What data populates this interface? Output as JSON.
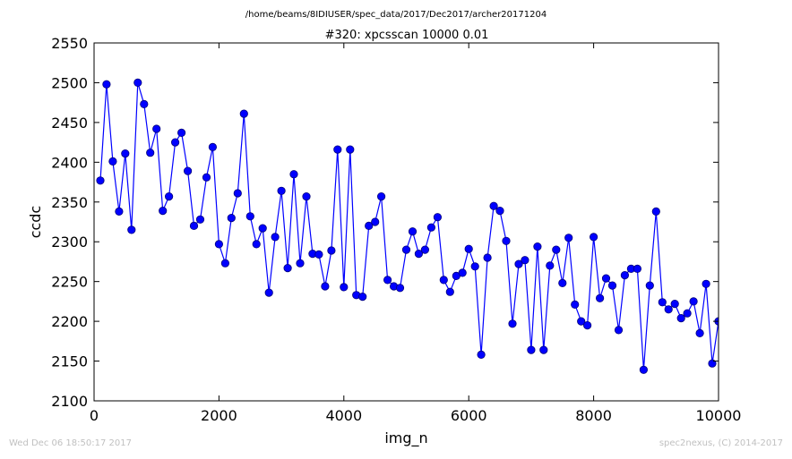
{
  "header": {
    "path": "/home/beams/8IDIUSER/spec_data/2017/Dec2017/archer20171204"
  },
  "footer": {
    "timestamp": "Wed Dec 06 18:50:17 2017",
    "credit": "spec2nexus, (C) 2014-2017"
  },
  "chart_data": {
    "type": "line",
    "title": "#320: xpcsscan 10000 0.01",
    "xlabel": "img_n",
    "ylabel": "ccdc",
    "xlim": [
      0,
      10000
    ],
    "ylim": [
      2100,
      2550
    ],
    "xticks": [
      0,
      2000,
      4000,
      6000,
      8000,
      10000
    ],
    "yticks": [
      2100,
      2150,
      2200,
      2250,
      2300,
      2350,
      2400,
      2450,
      2500,
      2550
    ],
    "grid": false,
    "marker": "circle",
    "colors": {
      "line": "#0000ff",
      "marker_fill": "#0000ff",
      "marker_edge": "#00007a"
    },
    "series": [
      {
        "x": [
          100,
          200,
          300,
          400,
          500,
          600,
          700,
          800,
          900,
          1000,
          1100,
          1200,
          1300,
          1400,
          1500,
          1600,
          1700,
          1800,
          1900,
          2000,
          2100,
          2200,
          2300,
          2400,
          2500,
          2600,
          2700,
          2800,
          2900,
          3000,
          3100,
          3200,
          3300,
          3400,
          3500,
          3600,
          3700,
          3800,
          3900,
          4000,
          4100,
          4200,
          4300,
          4400,
          4500,
          4600,
          4700,
          4800,
          4900,
          5000,
          5100,
          5200,
          5300,
          5400,
          5500,
          5600,
          5700,
          5800,
          5900,
          6000,
          6100,
          6200,
          6300,
          6400,
          6500,
          6600,
          6700,
          6800,
          6900,
          7000,
          7100,
          7200,
          7300,
          7400,
          7500,
          7600,
          7700,
          7800,
          7900,
          8000,
          8100,
          8200,
          8300,
          8400,
          8500,
          8600,
          8700,
          8800,
          8900,
          9000,
          9100,
          9200,
          9300,
          9400,
          9500,
          9600,
          9700,
          9800,
          9900,
          10000
        ],
        "y": [
          2377,
          2498,
          2401,
          2338,
          2411,
          2315,
          2500,
          2473,
          2412,
          2442,
          2339,
          2357,
          2425,
          2437,
          2389,
          2320,
          2328,
          2381,
          2419,
          2297,
          2273,
          2330,
          2361,
          2461,
          2332,
          2297,
          2317,
          2236,
          2306,
          2364,
          2267,
          2385,
          2273,
          2357,
          2285,
          2284,
          2244,
          2289,
          2416,
          2243,
          2416,
          2233,
          2231,
          2320,
          2325,
          2357,
          2252,
          2244,
          2242,
          2290,
          2313,
          2285,
          2290,
          2318,
          2331,
          2252,
          2237,
          2257,
          2261,
          2291,
          2269,
          2158,
          2280,
          2345,
          2339,
          2301,
          2197,
          2272,
          2277,
          2164,
          2294,
          2164,
          2270,
          2290,
          2248,
          2305,
          2221,
          2200,
          2195,
          2306,
          2229,
          2254,
          2245,
          2189,
          2258,
          2266,
          2266,
          2139,
          2245,
          2338,
          2224,
          2215,
          2222,
          2204,
          2210,
          2225,
          2185,
          2247,
          2147,
          2200
        ]
      }
    ]
  }
}
